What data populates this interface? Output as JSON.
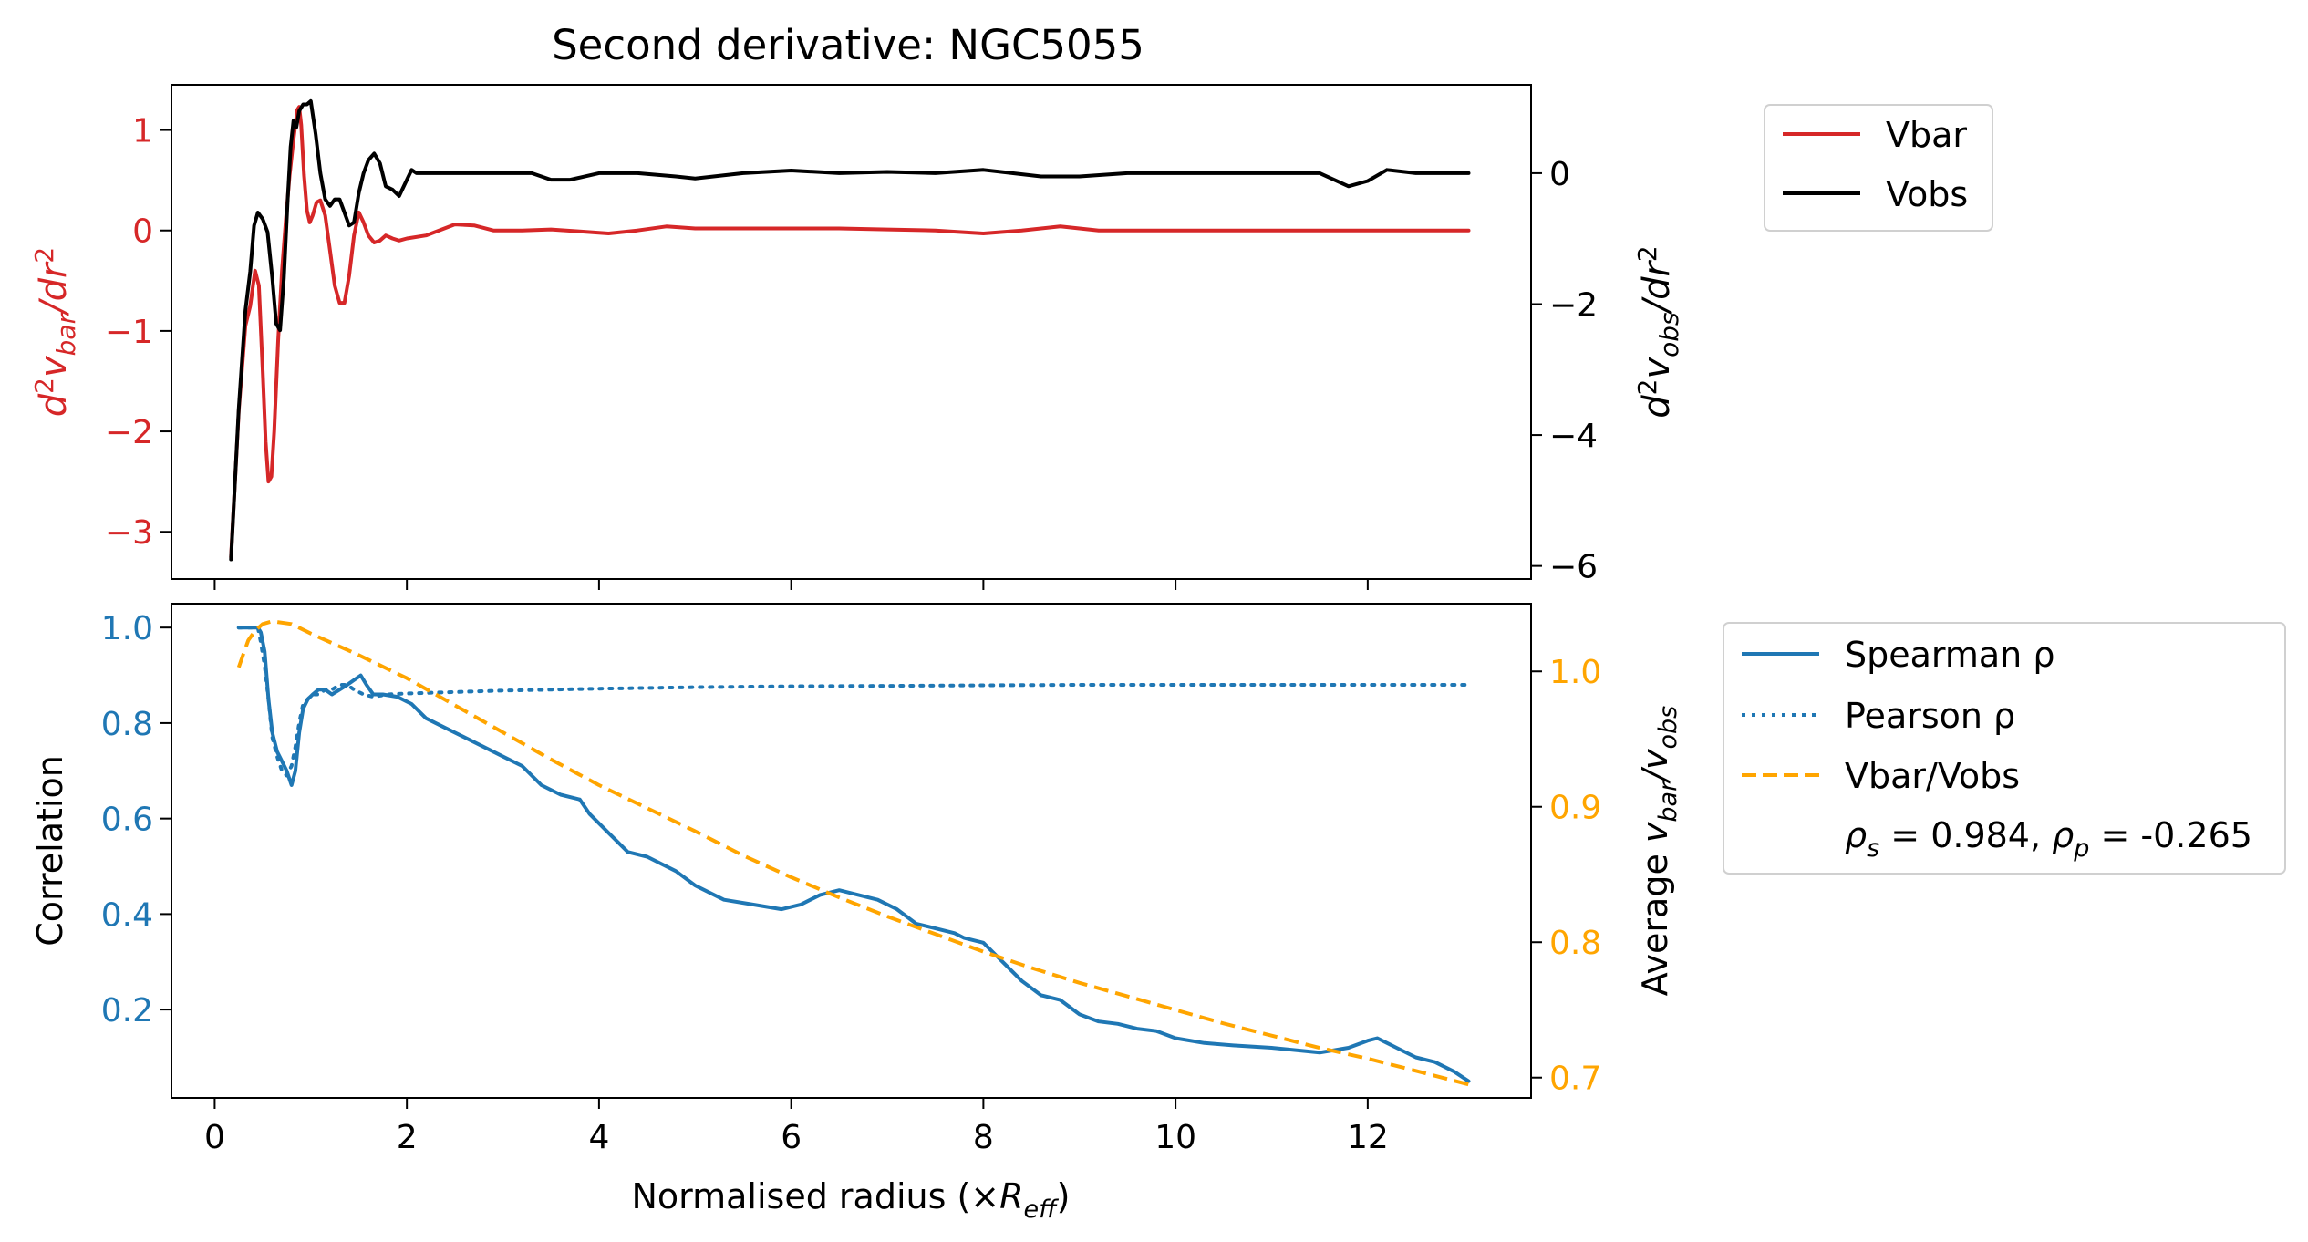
{
  "colors": {
    "red": "#d62728",
    "black": "#000000",
    "blue": "#1f77b4",
    "orange": "#ffa500"
  },
  "chart_data": [
    {
      "type": "line",
      "title": "Second derivative: NGC5055",
      "ylabel_left": "d²v_bar/dr²",
      "ylabel_right": "d²v_obs/dr²",
      "xlim": [
        -0.45,
        13.7
      ],
      "ylim_left": [
        -3.47,
        1.45
      ],
      "ylim_right": [
        -6.2,
        1.35
      ],
      "yticks_left": [
        1,
        0,
        -1,
        -2,
        -3
      ],
      "yticks_right": [
        0,
        -2,
        -4,
        -6
      ],
      "ytick_labels_left": [
        "1",
        "0",
        "−1",
        "−2",
        "−3"
      ],
      "ytick_labels_right": [
        "0",
        "−2",
        "−4",
        "−6"
      ],
      "legend": {
        "position": "right",
        "entries": [
          "Vbar",
          "Vobs"
        ]
      },
      "series": [
        {
          "name": "Vbar",
          "axis": "left",
          "color": "red",
          "x": [
            0.17,
            0.25,
            0.32,
            0.37,
            0.42,
            0.46,
            0.5,
            0.53,
            0.56,
            0.59,
            0.62,
            0.66,
            0.7,
            0.74,
            0.78,
            0.82,
            0.86,
            0.88,
            0.9,
            0.93,
            0.96,
            0.99,
            1.02,
            1.06,
            1.1,
            1.15,
            1.2,
            1.25,
            1.3,
            1.35,
            1.4,
            1.45,
            1.5,
            1.55,
            1.6,
            1.66,
            1.72,
            1.78,
            1.85,
            1.92,
            2.0,
            2.2,
            2.5,
            2.7,
            2.9,
            3.2,
            3.5,
            3.8,
            4.1,
            4.4,
            4.7,
            5.0,
            5.5,
            6.0,
            6.5,
            7.0,
            7.5,
            8.0,
            8.4,
            8.8,
            9.2,
            9.6,
            10.0,
            10.5,
            11.0,
            11.5,
            12.0,
            12.5,
            13.05
          ],
          "values": [
            -3.25,
            -1.8,
            -0.95,
            -0.75,
            -0.4,
            -0.55,
            -1.4,
            -2.1,
            -2.5,
            -2.45,
            -2.0,
            -1.1,
            -0.4,
            0.1,
            0.55,
            0.9,
            1.2,
            1.23,
            1.05,
            0.55,
            0.2,
            0.08,
            0.15,
            0.28,
            0.3,
            0.15,
            -0.2,
            -0.55,
            -0.72,
            -0.72,
            -0.45,
            -0.05,
            0.18,
            0.08,
            -0.05,
            -0.12,
            -0.1,
            -0.05,
            -0.08,
            -0.1,
            -0.08,
            -0.05,
            0.06,
            0.05,
            0.0,
            0.0,
            0.01,
            -0.01,
            -0.03,
            0.0,
            0.04,
            0.02,
            0.02,
            0.02,
            0.02,
            0.01,
            0.0,
            -0.03,
            0.0,
            0.04,
            0.0,
            0.0,
            0.0,
            0.0,
            0.0,
            0.0,
            0.0,
            0.0,
            0.0
          ]
        },
        {
          "name": "Vobs",
          "axis": "right",
          "color": "black",
          "x": [
            0.17,
            0.25,
            0.32,
            0.37,
            0.41,
            0.45,
            0.5,
            0.55,
            0.6,
            0.64,
            0.68,
            0.72,
            0.76,
            0.79,
            0.82,
            0.85,
            0.88,
            0.92,
            0.96,
            1.0,
            1.05,
            1.1,
            1.15,
            1.2,
            1.25,
            1.3,
            1.35,
            1.4,
            1.45,
            1.5,
            1.55,
            1.6,
            1.66,
            1.72,
            1.78,
            1.85,
            1.92,
            2.0,
            2.05,
            2.1,
            2.15,
            2.5,
            3.0,
            3.3,
            3.5,
            3.7,
            4.0,
            4.4,
            4.8,
            5.0,
            5.5,
            6.0,
            6.5,
            7.0,
            7.5,
            8.0,
            8.3,
            8.6,
            9.0,
            9.5,
            10.0,
            10.5,
            11.0,
            11.5,
            11.8,
            12.0,
            12.2,
            12.5,
            13.05
          ],
          "values": [
            -5.9,
            -3.6,
            -2.1,
            -1.5,
            -0.8,
            -0.6,
            -0.7,
            -0.9,
            -1.6,
            -2.3,
            -2.4,
            -1.6,
            -0.4,
            0.4,
            0.8,
            0.7,
            0.95,
            1.05,
            1.05,
            1.1,
            0.6,
            0.0,
            -0.4,
            -0.5,
            -0.4,
            -0.4,
            -0.6,
            -0.8,
            -0.75,
            -0.3,
            0.0,
            0.2,
            0.3,
            0.15,
            -0.2,
            -0.25,
            -0.35,
            -0.1,
            0.05,
            0.0,
            0.0,
            0.0,
            0.0,
            0.0,
            -0.1,
            -0.1,
            0.0,
            0.0,
            -0.05,
            -0.08,
            0.0,
            0.04,
            0.0,
            0.02,
            0.0,
            0.05,
            0.0,
            -0.05,
            -0.05,
            0.0,
            0.0,
            0.0,
            0.0,
            0.0,
            -0.2,
            -0.12,
            0.05,
            0.0,
            0.0
          ]
        }
      ]
    },
    {
      "type": "line",
      "xlabel": "Normalised radius (×R_eff)",
      "ylabel_left": "Correlation",
      "ylabel_right": "Average v_bar/v_obs",
      "xlim": [
        -0.45,
        13.7
      ],
      "ylim_left": [
        0.015,
        1.05
      ],
      "ylim_right": [
        0.685,
        1.05
      ],
      "xticks": [
        0,
        2,
        4,
        6,
        8,
        10,
        12
      ],
      "xtick_labels": [
        "0",
        "2",
        "4",
        "6",
        "8",
        "10",
        "12"
      ],
      "yticks_left": [
        1.0,
        0.8,
        0.6,
        0.4,
        0.2
      ],
      "ytick_labels_left": [
        "1.0",
        "0.8",
        "0.6",
        "0.4",
        "0.2"
      ],
      "yticks_right": [
        1.0,
        0.9,
        0.8,
        0.7
      ],
      "ytick_labels_right": [
        "1.0",
        "0.9",
        "0.8",
        "0.7"
      ],
      "legend": {
        "position": "right",
        "entries": [
          "Spearman ρ",
          "Pearson ρ",
          "Vbar/Vobs"
        ],
        "stat_prefix_s": "ρ",
        "stat_sub_s": "s",
        "stat_value_s": " = 0.984, ",
        "stat_prefix_p": "ρ",
        "stat_sub_p": "p",
        "stat_value_p": " = -0.265"
      },
      "series": [
        {
          "name": "Spearman ρ",
          "axis": "left",
          "color": "blue",
          "style": "solid",
          "x": [
            0.25,
            0.35,
            0.45,
            0.48,
            0.52,
            0.56,
            0.6,
            0.65,
            0.7,
            0.75,
            0.8,
            0.84,
            0.88,
            0.92,
            0.97,
            1.02,
            1.08,
            1.15,
            1.22,
            1.3,
            1.38,
            1.45,
            1.52,
            1.58,
            1.65,
            1.75,
            1.9,
            2.05,
            2.2,
            2.4,
            2.6,
            2.8,
            3.0,
            3.2,
            3.4,
            3.6,
            3.8,
            3.9,
            4.1,
            4.3,
            4.5,
            4.8,
            5.0,
            5.3,
            5.6,
            5.9,
            6.1,
            6.3,
            6.5,
            6.7,
            6.9,
            7.1,
            7.3,
            7.5,
            7.7,
            7.8,
            8.0,
            8.2,
            8.4,
            8.6,
            8.8,
            9.0,
            9.2,
            9.4,
            9.6,
            9.8,
            10.0,
            10.3,
            10.6,
            11.0,
            11.5,
            11.8,
            12.0,
            12.1,
            12.3,
            12.5,
            12.7,
            12.9,
            13.05
          ],
          "values": [
            1.0,
            1.0,
            1.0,
            0.99,
            0.95,
            0.85,
            0.78,
            0.74,
            0.72,
            0.7,
            0.67,
            0.7,
            0.78,
            0.83,
            0.85,
            0.86,
            0.87,
            0.87,
            0.86,
            0.87,
            0.88,
            0.89,
            0.9,
            0.88,
            0.86,
            0.86,
            0.855,
            0.84,
            0.81,
            0.79,
            0.77,
            0.75,
            0.73,
            0.71,
            0.67,
            0.65,
            0.64,
            0.61,
            0.57,
            0.53,
            0.52,
            0.49,
            0.46,
            0.43,
            0.42,
            0.41,
            0.42,
            0.44,
            0.45,
            0.44,
            0.43,
            0.41,
            0.38,
            0.37,
            0.36,
            0.35,
            0.34,
            0.3,
            0.26,
            0.23,
            0.22,
            0.19,
            0.175,
            0.17,
            0.16,
            0.155,
            0.14,
            0.13,
            0.125,
            0.12,
            0.11,
            0.12,
            0.135,
            0.14,
            0.12,
            0.1,
            0.09,
            0.07,
            0.05
          ]
        },
        {
          "name": "Pearson ρ",
          "axis": "left",
          "color": "blue",
          "style": "dotted",
          "x": [
            0.25,
            0.35,
            0.45,
            0.48,
            0.52,
            0.56,
            0.6,
            0.65,
            0.7,
            0.75,
            0.8,
            0.84,
            0.88,
            0.92,
            0.97,
            1.02,
            1.08,
            1.15,
            1.22,
            1.3,
            1.38,
            1.45,
            1.55,
            1.65,
            1.8,
            2.0,
            2.5,
            3.0,
            4.0,
            5.0,
            6.0,
            7.0,
            8.0,
            9.0,
            10.0,
            11.0,
            12.0,
            13.05
          ],
          "values": [
            1.0,
            1.0,
            1.0,
            0.97,
            0.92,
            0.85,
            0.77,
            0.73,
            0.7,
            0.69,
            0.71,
            0.75,
            0.8,
            0.84,
            0.85,
            0.86,
            0.86,
            0.87,
            0.87,
            0.88,
            0.88,
            0.87,
            0.86,
            0.855,
            0.86,
            0.862,
            0.865,
            0.868,
            0.872,
            0.875,
            0.877,
            0.878,
            0.879,
            0.88,
            0.88,
            0.88,
            0.88,
            0.88
          ]
        },
        {
          "name": "Vbar/Vobs",
          "axis": "right",
          "color": "orange",
          "style": "dashed",
          "x": [
            0.25,
            0.3,
            0.35,
            0.42,
            0.5,
            0.6,
            0.8,
            1.0,
            1.5,
            2.0,
            2.5,
            3.0,
            3.5,
            4.0,
            4.5,
            5.0,
            5.5,
            6.0,
            6.5,
            7.0,
            7.5,
            8.0,
            8.5,
            9.0,
            9.5,
            10.0,
            10.5,
            11.0,
            11.5,
            12.0,
            12.5,
            13.05
          ],
          "values": [
            1.003,
            1.013,
            1.023,
            1.03,
            1.035,
            1.037,
            1.035,
            1.028,
            1.012,
            0.995,
            0.975,
            0.955,
            0.935,
            0.916,
            0.899,
            0.882,
            0.864,
            0.848,
            0.833,
            0.819,
            0.806,
            0.793,
            0.781,
            0.77,
            0.76,
            0.75,
            0.74,
            0.731,
            0.722,
            0.714,
            0.705,
            0.695
          ]
        }
      ]
    }
  ]
}
